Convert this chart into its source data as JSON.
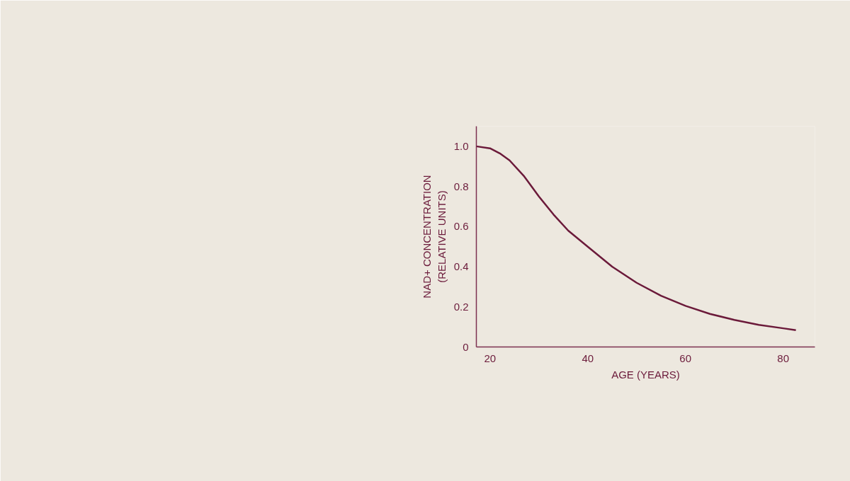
{
  "chart_data": {
    "type": "line",
    "xlabel": "AGE (YEARS)",
    "ylabel": "NAD+ CONCENTRATION\n(RELATIVE UNITS)",
    "x": [
      17.2,
      20,
      22,
      24,
      27,
      30,
      33,
      36,
      40,
      45,
      50,
      55,
      60,
      65,
      70,
      75,
      80,
      82.6
    ],
    "series": [
      {
        "color": "#6b1a3a",
        "values": [
          1.0,
          0.99,
          0.965,
          0.93,
          0.85,
          0.75,
          0.66,
          0.58,
          0.5,
          0.4,
          0.32,
          0.255,
          0.205,
          0.165,
          0.135,
          0.11,
          0.093,
          0.084
        ]
      }
    ],
    "xlim": [
      17.2,
      86.5
    ],
    "ylim": [
      0,
      1.1
    ],
    "xticks": [
      20,
      40,
      60,
      80
    ],
    "yticks": [
      0,
      0.2,
      0.4,
      0.6,
      0.8,
      {
        "value": 1.0,
        "label": "1.0"
      }
    ],
    "grid": false,
    "marker": "none",
    "line_style": "solid"
  }
}
